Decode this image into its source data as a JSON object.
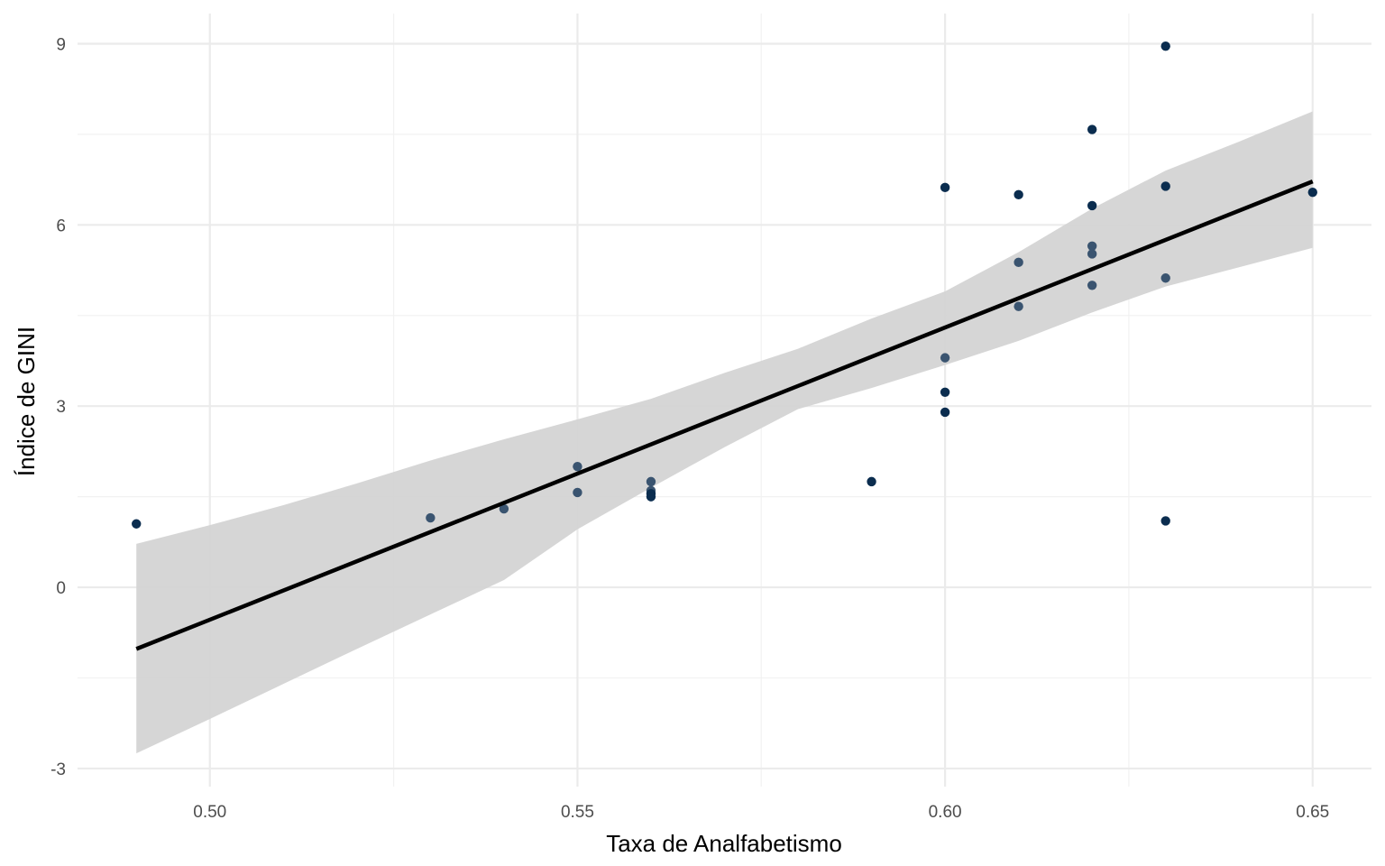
{
  "chart_data": {
    "type": "scatter",
    "title": "",
    "xlabel": "Taxa de Analfabetismo",
    "ylabel": "Índice de GINI",
    "xlim": [
      0.482,
      0.658
    ],
    "ylim": [
      -3.3,
      9.5
    ],
    "x_ticks": [
      0.5,
      0.55,
      0.6,
      0.65
    ],
    "x_tick_labels": [
      "0.50",
      "0.55",
      "0.60",
      "0.65"
    ],
    "y_ticks": [
      -3,
      0,
      3,
      6,
      9
    ],
    "y_tick_labels": [
      "-3",
      "0",
      "3",
      "6",
      "9"
    ],
    "grid": true,
    "legend": "none",
    "colors": {
      "points_dark": "#0b2d4f",
      "points_light": "#3a5470",
      "fit_line": "#000000",
      "ribbon": "#d3d3d3",
      "grid_major": "#ebebeb",
      "grid_minor": "#f2f2f2"
    },
    "points": [
      {
        "x": 0.49,
        "y": 1.05,
        "shade": "dark"
      },
      {
        "x": 0.53,
        "y": 1.15,
        "shade": "light"
      },
      {
        "x": 0.54,
        "y": 1.3,
        "shade": "light"
      },
      {
        "x": 0.55,
        "y": 2.0,
        "shade": "light"
      },
      {
        "x": 0.55,
        "y": 1.57,
        "shade": "light"
      },
      {
        "x": 0.56,
        "y": 1.75,
        "shade": "light"
      },
      {
        "x": 0.56,
        "y": 1.6,
        "shade": "light"
      },
      {
        "x": 0.56,
        "y": 1.55,
        "shade": "dark"
      },
      {
        "x": 0.56,
        "y": 1.5,
        "shade": "dark"
      },
      {
        "x": 0.59,
        "y": 1.75,
        "shade": "dark"
      },
      {
        "x": 0.6,
        "y": 6.62,
        "shade": "dark"
      },
      {
        "x": 0.6,
        "y": 3.8,
        "shade": "light"
      },
      {
        "x": 0.6,
        "y": 3.23,
        "shade": "dark"
      },
      {
        "x": 0.6,
        "y": 2.9,
        "shade": "dark"
      },
      {
        "x": 0.61,
        "y": 6.5,
        "shade": "dark"
      },
      {
        "x": 0.61,
        "y": 5.38,
        "shade": "light"
      },
      {
        "x": 0.61,
        "y": 4.65,
        "shade": "light"
      },
      {
        "x": 0.62,
        "y": 7.58,
        "shade": "dark"
      },
      {
        "x": 0.62,
        "y": 6.32,
        "shade": "dark"
      },
      {
        "x": 0.62,
        "y": 5.65,
        "shade": "light"
      },
      {
        "x": 0.62,
        "y": 5.52,
        "shade": "light"
      },
      {
        "x": 0.62,
        "y": 5.0,
        "shade": "light"
      },
      {
        "x": 0.63,
        "y": 8.96,
        "shade": "dark"
      },
      {
        "x": 0.63,
        "y": 6.64,
        "shade": "dark"
      },
      {
        "x": 0.63,
        "y": 5.12,
        "shade": "light"
      },
      {
        "x": 0.63,
        "y": 1.1,
        "shade": "dark"
      },
      {
        "x": 0.65,
        "y": 6.54,
        "shade": "dark"
      }
    ],
    "fit_line": {
      "x": [
        0.49,
        0.65
      ],
      "y": [
        -1.02,
        6.72
      ]
    },
    "ribbon": [
      {
        "x": 0.49,
        "lower": -2.75,
        "upper": 0.72
      },
      {
        "x": 0.5,
        "lower": -2.18,
        "upper": 1.03
      },
      {
        "x": 0.51,
        "lower": -1.6,
        "upper": 1.36
      },
      {
        "x": 0.52,
        "lower": -1.02,
        "upper": 1.72
      },
      {
        "x": 0.53,
        "lower": -0.45,
        "upper": 2.1
      },
      {
        "x": 0.54,
        "lower": 0.12,
        "upper": 2.45
      },
      {
        "x": 0.55,
        "lower": 0.96,
        "upper": 2.78
      },
      {
        "x": 0.56,
        "lower": 1.65,
        "upper": 3.12
      },
      {
        "x": 0.57,
        "lower": 2.32,
        "upper": 3.55
      },
      {
        "x": 0.58,
        "lower": 2.95,
        "upper": 3.95
      },
      {
        "x": 0.59,
        "lower": 3.3,
        "upper": 4.45
      },
      {
        "x": 0.6,
        "lower": 3.68,
        "upper": 4.9
      },
      {
        "x": 0.61,
        "lower": 4.08,
        "upper": 5.55
      },
      {
        "x": 0.62,
        "lower": 4.55,
        "upper": 6.27
      },
      {
        "x": 0.63,
        "lower": 4.98,
        "upper": 6.9
      },
      {
        "x": 0.64,
        "lower": 5.3,
        "upper": 7.38
      },
      {
        "x": 0.65,
        "lower": 5.62,
        "upper": 7.88
      }
    ]
  }
}
